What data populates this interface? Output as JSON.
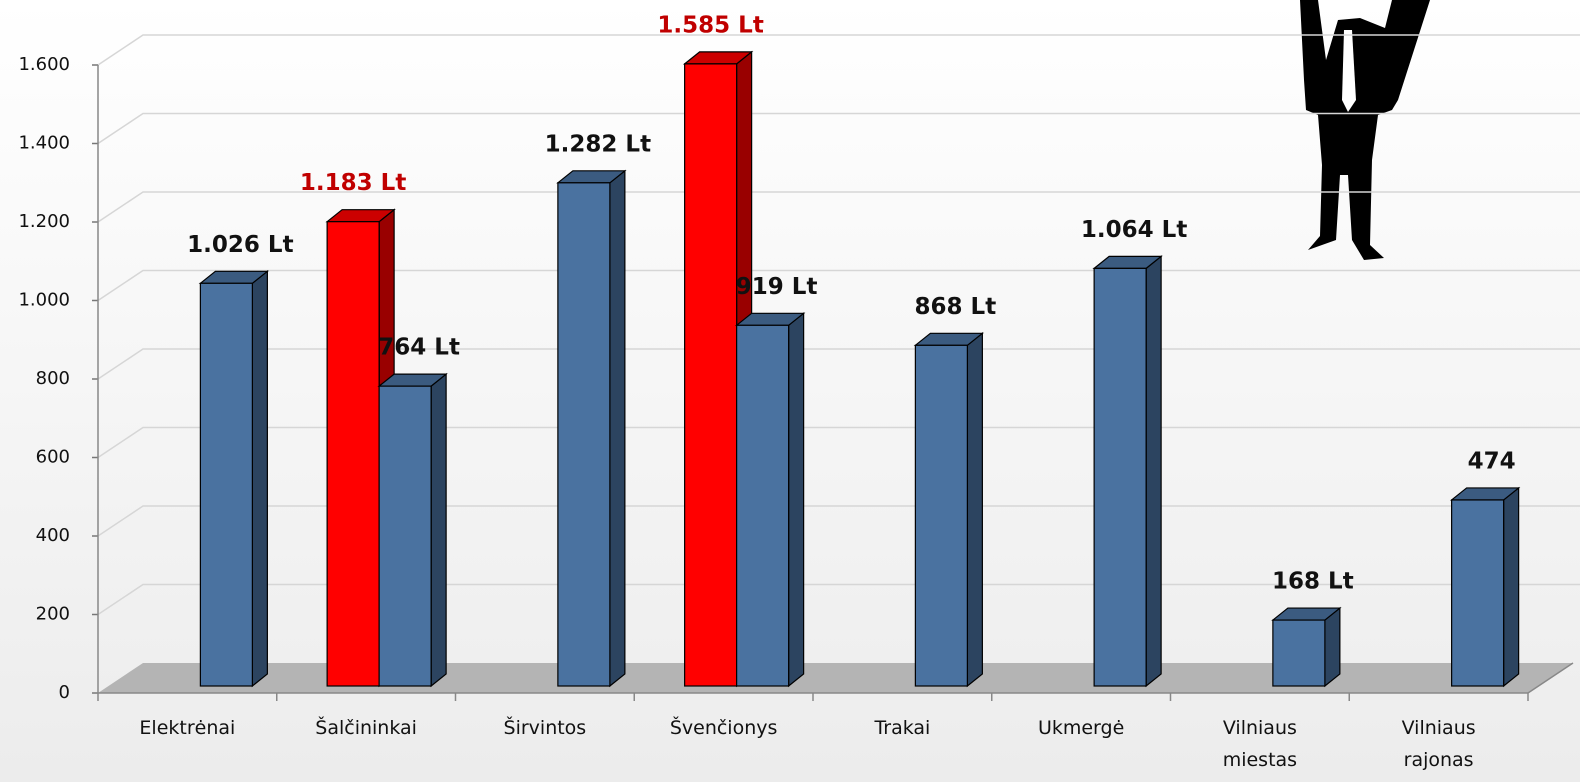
{
  "chart_data": {
    "type": "bar3d",
    "categories": [
      "Elektrėnai",
      "Šalčininkai",
      "Širvintos",
      "Švenčionys",
      "Trakai",
      "Ukmergė",
      "Vilniaus miestas",
      "Vilniaus rajonas"
    ],
    "series": [
      {
        "color": "#ff0000",
        "label_color": "#c00000",
        "values": [
          null,
          1183,
          null,
          1585,
          null,
          null,
          null,
          null
        ],
        "value_labels": [
          null,
          "1.183 Lt",
          null,
          "1.585 Lt",
          null,
          null,
          null,
          null
        ]
      },
      {
        "color": "#4a72a0",
        "label_color": "#111111",
        "values": [
          1026,
          764,
          1282,
          919,
          868,
          1064,
          168,
          474
        ],
        "value_labels": [
          "1.026 Lt",
          "764 Lt",
          "1.282 Lt",
          "919 Lt",
          "868 Lt",
          "1.064 Lt",
          "168 Lt",
          "474"
        ]
      }
    ],
    "ylim": [
      0,
      1600
    ],
    "yticks": [
      0,
      200,
      400,
      600,
      800,
      {
        "value": 1000,
        "label": "1.000"
      },
      {
        "value": 1200,
        "label": "1.200"
      },
      {
        "value": 1400,
        "label": "1.400"
      },
      {
        "value": 1600,
        "label": "1.600"
      }
    ],
    "grid": true
  }
}
